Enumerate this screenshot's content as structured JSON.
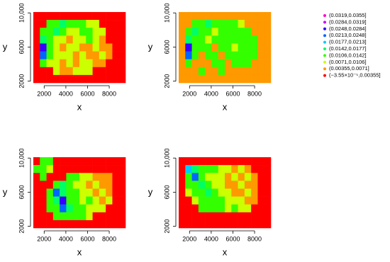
{
  "chart_data": [
    {
      "type": "heatmap",
      "xlabel": "x",
      "ylabel": "y",
      "xlim": [
        1000,
        9500
      ],
      "ylim": [
        1800,
        10100
      ],
      "xticks": [
        2000,
        4000,
        6000,
        8000
      ],
      "yticks": [
        2000,
        6000,
        {
          "value": 10000,
          "label": "10,000"
        }
      ],
      "cells": [
        [
          9,
          9,
          9,
          9,
          9,
          9,
          9,
          9,
          9,
          9,
          9,
          9,
          9,
          9
        ],
        [
          9,
          9,
          6,
          6,
          5,
          6,
          6,
          6,
          7,
          7,
          9,
          9,
          9,
          9
        ],
        [
          9,
          6,
          6,
          5,
          6,
          7,
          7,
          6,
          6,
          7,
          7,
          9,
          9,
          9
        ],
        [
          9,
          5,
          6,
          7,
          7,
          8,
          7,
          7,
          6,
          7,
          8,
          9,
          9,
          9
        ],
        [
          9,
          2,
          6,
          7,
          8,
          7,
          7,
          8,
          8,
          7,
          8,
          8,
          9,
          9
        ],
        [
          9,
          3,
          6,
          7,
          7,
          7,
          8,
          7,
          8,
          8,
          7,
          8,
          9,
          9
        ],
        [
          9,
          6,
          7,
          7,
          8,
          7,
          8,
          7,
          7,
          8,
          8,
          9,
          9,
          9
        ],
        [
          9,
          9,
          9,
          7,
          8,
          8,
          7,
          7,
          7,
          9,
          9,
          9,
          9,
          9
        ],
        [
          9,
          9,
          9,
          9,
          9,
          9,
          9,
          9,
          9,
          9,
          9,
          9,
          9,
          9
        ]
      ]
    },
    {
      "type": "heatmap",
      "xlabel": "x",
      "ylabel": "y",
      "xlim": [
        1000,
        9500
      ],
      "ylim": [
        1800,
        10100
      ],
      "xticks": [
        2000,
        4000,
        6000,
        8000
      ],
      "yticks": [
        2000,
        6000,
        {
          "value": 10000,
          "label": "10,000"
        }
      ],
      "cells": [
        [
          8,
          8,
          8,
          8,
          8,
          8,
          8,
          8,
          8,
          8,
          8,
          8,
          8,
          8
        ],
        [
          8,
          8,
          6,
          6,
          5,
          6,
          6,
          6,
          6,
          7,
          8,
          8,
          8,
          8
        ],
        [
          8,
          6,
          5,
          6,
          6,
          7,
          6,
          6,
          6,
          6,
          6,
          8,
          8,
          8
        ],
        [
          8,
          5,
          6,
          6,
          7,
          6,
          6,
          6,
          6,
          6,
          6,
          6,
          8,
          8
        ],
        [
          8,
          2,
          6,
          6,
          6,
          8,
          6,
          6,
          7,
          6,
          6,
          6,
          8,
          8
        ],
        [
          8,
          3,
          6,
          8,
          6,
          6,
          8,
          6,
          6,
          6,
          6,
          6,
          8,
          8
        ],
        [
          8,
          6,
          8,
          8,
          8,
          6,
          6,
          8,
          6,
          6,
          6,
          8,
          8,
          8
        ],
        [
          8,
          8,
          8,
          6,
          8,
          8,
          6,
          8,
          8,
          8,
          8,
          8,
          8,
          8
        ],
        [
          8,
          8,
          8,
          8,
          8,
          8,
          8,
          8,
          8,
          8,
          8,
          8,
          8,
          8
        ]
      ]
    },
    {
      "type": "heatmap",
      "xlabel": "x",
      "ylabel": "y",
      "xlim": [
        1000,
        9500
      ],
      "ylim": [
        1800,
        10100
      ],
      "xticks": [
        2000,
        4000,
        6000,
        8000
      ],
      "yticks": [
        2000,
        6000,
        {
          "value": 10000,
          "label": "10,000"
        }
      ],
      "cells": [
        [
          9,
          6,
          6,
          9,
          9,
          9,
          9,
          9,
          9,
          9,
          9,
          9,
          9,
          9
        ],
        [
          6,
          6,
          7,
          9,
          9,
          9,
          9,
          9,
          9,
          9,
          9,
          9,
          9,
          9
        ],
        [
          9,
          6,
          9,
          9,
          9,
          6,
          6,
          7,
          7,
          8,
          8,
          8,
          9,
          9
        ],
        [
          9,
          9,
          9,
          6,
          5,
          6,
          7,
          7,
          8,
          7,
          8,
          8,
          9,
          9
        ],
        [
          9,
          9,
          6,
          3,
          5,
          6,
          6,
          7,
          7,
          8,
          7,
          8,
          9,
          9
        ],
        [
          9,
          9,
          6,
          5,
          2,
          6,
          6,
          7,
          6,
          7,
          8,
          7,
          9,
          9
        ],
        [
          9,
          9,
          6,
          6,
          3,
          5,
          6,
          6,
          7,
          7,
          7,
          9,
          9,
          9
        ],
        [
          9,
          9,
          9,
          6,
          6,
          6,
          6,
          6,
          7,
          9,
          9,
          9,
          9,
          9
        ],
        [
          9,
          9,
          9,
          9,
          9,
          9,
          9,
          9,
          9,
          9,
          9,
          9,
          9,
          9
        ]
      ]
    },
    {
      "type": "heatmap",
      "xlabel": "x",
      "ylabel": "y",
      "xlim": [
        1000,
        9500
      ],
      "ylim": [
        1800,
        10100
      ],
      "xticks": [
        2000,
        4000,
        6000,
        8000
      ],
      "yticks": [
        2000,
        6000,
        {
          "value": 10000,
          "label": "10,000"
        }
      ],
      "cells": [
        [
          9,
          9,
          9,
          9,
          9,
          9,
          9,
          9,
          9,
          9,
          9,
          9,
          9,
          9
        ],
        [
          9,
          4,
          5,
          6,
          6,
          6,
          7,
          7,
          8,
          7,
          8,
          9,
          9,
          9
        ],
        [
          9,
          6,
          3,
          6,
          7,
          7,
          7,
          8,
          7,
          8,
          7,
          8,
          9,
          9
        ],
        [
          9,
          6,
          6,
          5,
          6,
          7,
          7,
          8,
          8,
          7,
          8,
          8,
          9,
          9
        ],
        [
          9,
          7,
          6,
          6,
          5,
          6,
          7,
          7,
          8,
          8,
          7,
          8,
          9,
          9
        ],
        [
          9,
          9,
          7,
          6,
          6,
          6,
          6,
          7,
          7,
          7,
          8,
          8,
          9,
          9
        ],
        [
          9,
          9,
          9,
          6,
          6,
          6,
          6,
          7,
          6,
          7,
          7,
          9,
          9,
          9
        ],
        [
          9,
          9,
          9,
          9,
          9,
          9,
          9,
          9,
          9,
          9,
          9,
          9,
          9,
          9
        ],
        [
          9,
          9,
          9,
          9,
          9,
          9,
          9,
          9,
          9,
          9,
          9,
          9,
          9,
          9
        ]
      ]
    }
  ],
  "legend": {
    "labels": [
      "(0.0319,0.0355]",
      "(0.0284,0.0319]",
      "(0.0248,0.0284]",
      "(0.0213,0.0248]",
      "(0.0177,0.0213]",
      "(0.0142,0.0177]",
      "(0.0106,0.0142]",
      "(0.0071,0.0106]",
      "(0.00355,0.0071]",
      "(−3.55×10⁻⁵,0.00355]"
    ],
    "colors": [
      "#ff00cc",
      "#cc00ff",
      "#3300ff",
      "#0066ff",
      "#00ccff",
      "#00ff66",
      "#33ff00",
      "#ccff00",
      "#ff9900",
      "#ff0000"
    ]
  }
}
